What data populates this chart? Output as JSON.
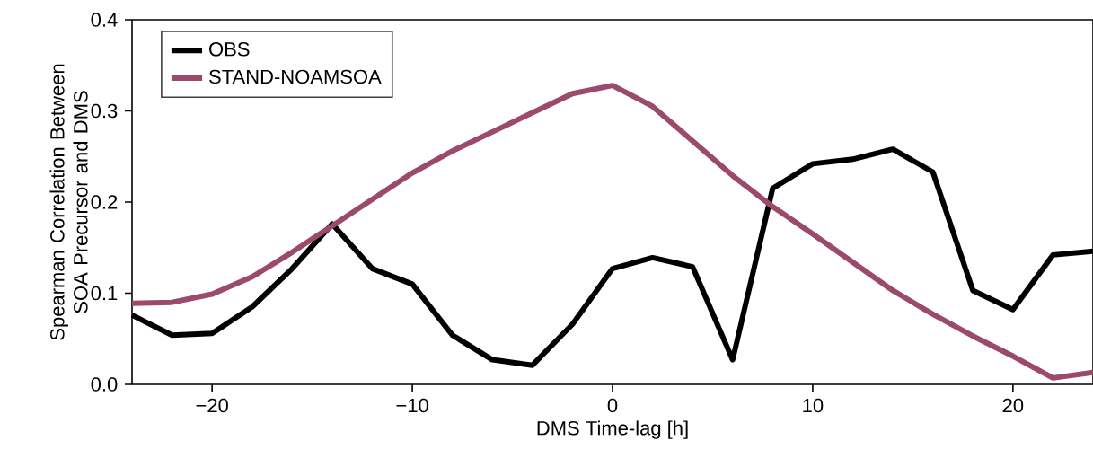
{
  "chart_data": {
    "type": "line",
    "xlabel": "DMS Time-lag [h]",
    "ylabel": "Spearman Correlation Between SOA Precursor and DMS",
    "x": [
      -24,
      -22,
      -20,
      -18,
      -16,
      -14,
      -12,
      -10,
      -8,
      -6,
      -4,
      -2,
      0,
      2,
      4,
      6,
      8,
      10,
      12,
      14,
      16,
      18,
      20,
      22,
      24
    ],
    "series": [
      {
        "name": "OBS",
        "color": "#000000",
        "values": [
          0.076,
          0.054,
          0.056,
          0.085,
          0.127,
          0.176,
          0.127,
          0.11,
          0.054,
          0.027,
          0.021,
          0.066,
          0.127,
          0.139,
          0.129,
          0.027,
          0.215,
          0.242,
          0.247,
          0.258,
          0.233,
          0.103,
          0.082,
          0.142,
          0.146
        ]
      },
      {
        "name": "STAND-NOAMSOA",
        "color": "#9b4a6b",
        "values": [
          0.089,
          0.09,
          0.099,
          0.118,
          0.145,
          0.174,
          0.203,
          0.232,
          0.256,
          0.277,
          0.298,
          0.319,
          0.328,
          0.305,
          0.267,
          0.229,
          0.195,
          0.165,
          0.134,
          0.103,
          0.077,
          0.053,
          0.031,
          0.007,
          0.013
        ]
      }
    ],
    "xlim": [
      -24,
      24
    ],
    "ylim": [
      0,
      0.4
    ],
    "xticks": [
      {
        "value": -20,
        "label": "−20"
      },
      {
        "value": -10,
        "label": "−10"
      },
      0,
      10,
      20
    ],
    "yticks": [
      {
        "value": 0,
        "label": "0.0"
      },
      0.1,
      0.2,
      0.3,
      0.4
    ],
    "grid": false,
    "legend": "top left",
    "marker": "none",
    "line_style": "solid"
  }
}
